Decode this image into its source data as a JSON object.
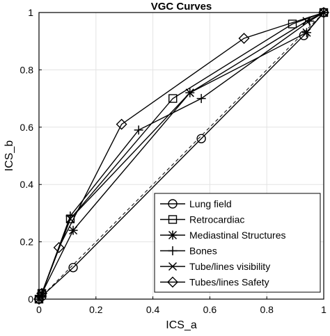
{
  "chart_data": {
    "type": "line",
    "title": "VGC Curves",
    "xlabel": "ICS_a",
    "ylabel": "ICS_b",
    "xlim": [
      0,
      1
    ],
    "ylim": [
      0,
      1
    ],
    "xticks": [
      "0",
      "0.2",
      "0.4",
      "0.6",
      "0.8",
      "1"
    ],
    "yticks": [
      "0",
      "0.2",
      "0.4",
      "0.6",
      "0.8",
      "1"
    ],
    "xtick_values": [
      0,
      0.2,
      0.4,
      0.6,
      0.8,
      1
    ],
    "ytick_values": [
      0,
      0.2,
      0.4,
      0.6,
      0.8,
      1
    ],
    "grid": true,
    "legend_position": "bottom-right",
    "reference_line": {
      "style": "dashed",
      "x": [
        0,
        1
      ],
      "y": [
        0,
        1
      ]
    },
    "series": [
      {
        "name": "Lung field",
        "marker": "circle",
        "x": [
          0,
          0.01,
          0.12,
          0.57,
          0.93,
          1
        ],
        "y": [
          0,
          0.01,
          0.11,
          0.56,
          0.92,
          1
        ]
      },
      {
        "name": "Retrocardiac",
        "marker": "square",
        "x": [
          0,
          0.01,
          0.11,
          0.47,
          0.89,
          1
        ],
        "y": [
          0,
          0.02,
          0.28,
          0.7,
          0.96,
          1
        ]
      },
      {
        "name": "Mediastinal Structures",
        "marker": "asterisk",
        "x": [
          0,
          0.01,
          0.12,
          0.53,
          0.94,
          1
        ],
        "y": [
          0,
          0.02,
          0.24,
          0.72,
          0.93,
          1
        ]
      },
      {
        "name": "Bones",
        "marker": "plus",
        "x": [
          0,
          0.01,
          0.11,
          0.35,
          0.57,
          0.95,
          1
        ],
        "y": [
          0,
          0.02,
          0.29,
          0.59,
          0.7,
          0.97,
          1
        ]
      },
      {
        "name": "Tube/lines visibility",
        "marker": "cross",
        "x": [
          0,
          0.01,
          0.11,
          0.53,
          0.94,
          1
        ],
        "y": [
          0,
          0.02,
          0.28,
          0.72,
          0.97,
          1
        ]
      },
      {
        "name": "Tubes/lines Safety",
        "marker": "diamond",
        "x": [
          0,
          0.01,
          0.07,
          0.29,
          0.72,
          1
        ],
        "y": [
          0,
          0.02,
          0.18,
          0.61,
          0.91,
          1
        ]
      }
    ]
  }
}
